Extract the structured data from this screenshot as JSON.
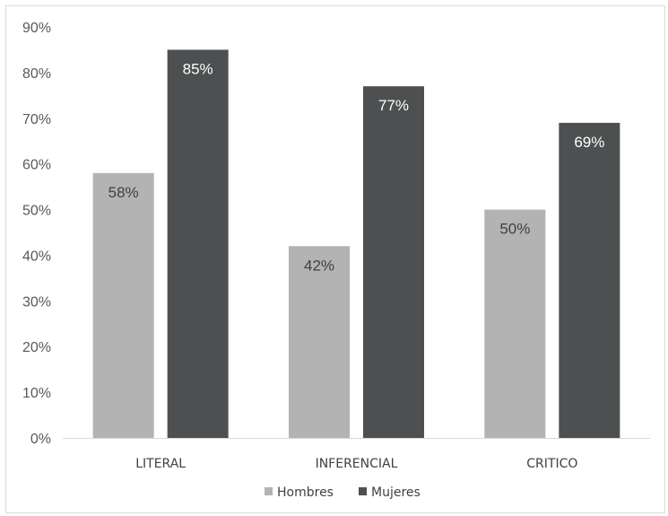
{
  "chart_data": {
    "type": "bar",
    "categories": [
      "LITERAL",
      "INFERENCIAL",
      "CRITICO"
    ],
    "series": [
      {
        "name": "Hombres",
        "values": [
          58,
          42,
          50
        ],
        "labels": [
          "58%",
          "42%",
          "50%"
        ],
        "color": "#b3b3b3",
        "label_color": "#404040"
      },
      {
        "name": "Mujeres",
        "values": [
          85,
          77,
          69
        ],
        "labels": [
          "85%",
          "77%",
          "69%"
        ],
        "color": "#4d4f50",
        "label_color": "#ffffff"
      }
    ],
    "y_ticks": [
      0,
      10,
      20,
      30,
      40,
      50,
      60,
      70,
      80,
      90
    ],
    "y_tick_labels": [
      "0%",
      "10%",
      "20%",
      "30%",
      "40%",
      "50%",
      "60%",
      "70%",
      "80%",
      "90%"
    ],
    "ylim": [
      0,
      90
    ],
    "grid": false,
    "legend_position": "bottom",
    "axis_color": "#d9d9d9"
  }
}
